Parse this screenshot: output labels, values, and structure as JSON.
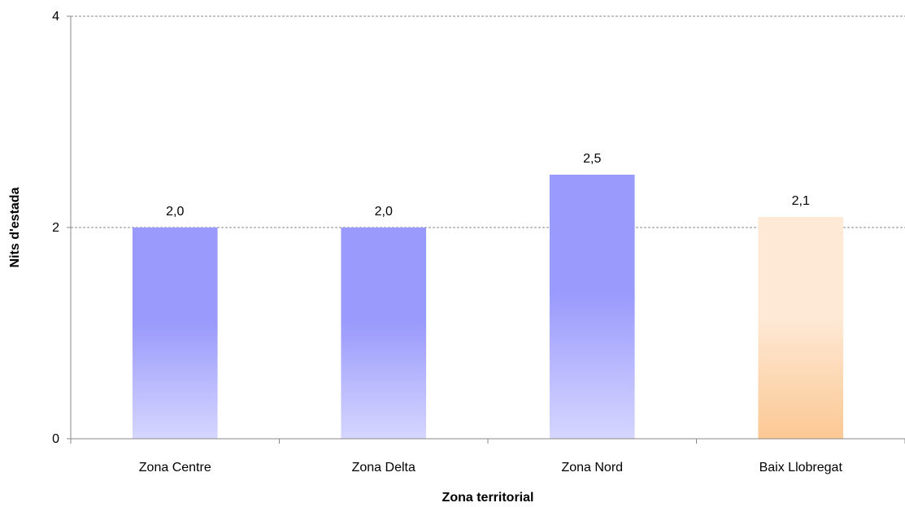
{
  "chart_data": {
    "type": "bar",
    "title": "",
    "xlabel": "Zona territorial",
    "ylabel": "Nits d'estada",
    "categories": [
      "Zona Centre",
      "Zona Delta",
      "Zona Nord",
      "Baix Llobregat"
    ],
    "values": [
      2.0,
      2.0,
      2.5,
      2.1
    ],
    "value_labels": [
      "2,0",
      "2,0",
      "2,5",
      "2,1"
    ],
    "ylim": [
      0,
      4
    ],
    "yticks": [
      0,
      2,
      4
    ],
    "ytick_labels": [
      "0",
      "2",
      "4"
    ],
    "grid": true,
    "legend": "none",
    "bar_colors": [
      {
        "top": "#9a9afc",
        "bottom": "#d6d6ff"
      },
      {
        "top": "#9a9afc",
        "bottom": "#d6d6ff"
      },
      {
        "top": "#9a9afc",
        "bottom": "#d6d6ff"
      },
      {
        "top": "#fde9d5",
        "bottom": "#fcc894"
      }
    ]
  }
}
